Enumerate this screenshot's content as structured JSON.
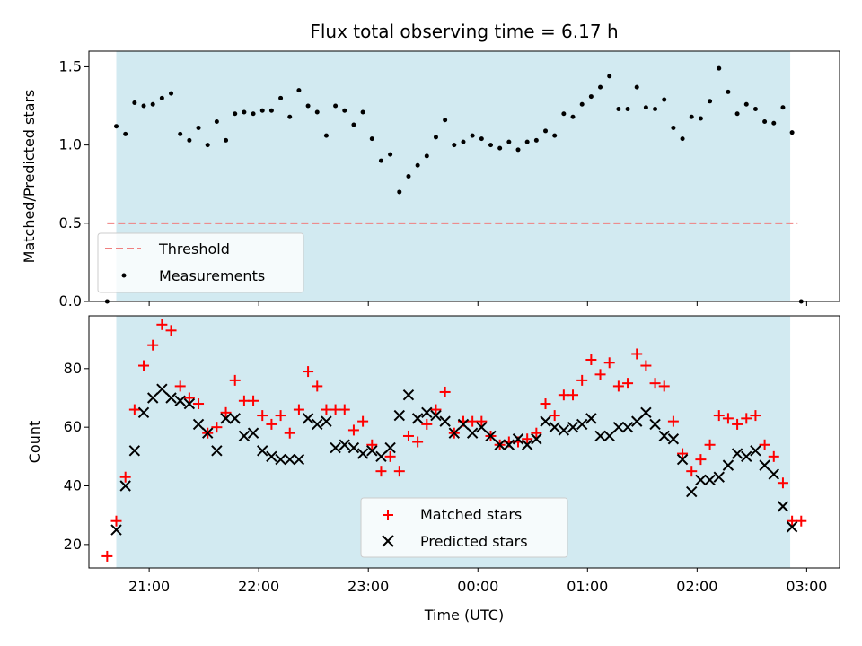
{
  "chart_data": [
    {
      "type": "scatter",
      "title": "Flux total observing time = 6.17 h",
      "ylabel": "Matched/Predicted stars",
      "xlim": [
        "20:27",
        "03:18"
      ],
      "ylim": [
        0.0,
        1.6
      ],
      "yticks": [
        "0.0",
        "0.5",
        "1.0",
        "1.5"
      ],
      "observing_window": [
        "20:42",
        "02:51"
      ],
      "colors": {
        "window": "#add8e6",
        "threshold": "#f08080",
        "measurements": "#000000"
      },
      "legend_position": "lower-left",
      "threshold": {
        "name": "Threshold",
        "value": 0.5,
        "x_range": [
          "20:37",
          "02:55"
        ]
      },
      "series": [
        {
          "name": "Measurements",
          "x": [
            "20:37",
            "20:42",
            "20:47",
            "20:52",
            "20:57",
            "21:02",
            "21:07",
            "21:12",
            "21:17",
            "21:22",
            "21:27",
            "21:32",
            "21:37",
            "21:42",
            "21:47",
            "21:52",
            "21:57",
            "22:02",
            "22:07",
            "22:12",
            "22:17",
            "22:22",
            "22:27",
            "22:32",
            "22:37",
            "22:42",
            "22:47",
            "22:52",
            "22:57",
            "23:02",
            "23:07",
            "23:12",
            "23:17",
            "23:22",
            "23:27",
            "23:32",
            "23:37",
            "23:42",
            "23:47",
            "23:52",
            "23:57",
            "00:02",
            "00:07",
            "00:12",
            "00:17",
            "00:22",
            "00:27",
            "00:32",
            "00:37",
            "00:42",
            "00:47",
            "00:52",
            "00:57",
            "01:02",
            "01:07",
            "01:12",
            "01:17",
            "01:22",
            "01:27",
            "01:32",
            "01:37",
            "01:42",
            "01:47",
            "01:52",
            "01:57",
            "02:02",
            "02:07",
            "02:12",
            "02:17",
            "02:22",
            "02:27",
            "02:32",
            "02:37",
            "02:42",
            "02:47",
            "02:52",
            "02:57"
          ],
          "values": [
            0.0,
            1.12,
            1.07,
            1.27,
            1.25,
            1.26,
            1.3,
            1.33,
            1.07,
            1.03,
            1.11,
            1.0,
            1.15,
            1.03,
            1.2,
            1.21,
            1.2,
            1.22,
            1.22,
            1.3,
            1.18,
            1.35,
            1.25,
            1.21,
            1.06,
            1.25,
            1.22,
            1.13,
            1.21,
            1.04,
            0.9,
            0.94,
            0.7,
            0.8,
            0.87,
            0.93,
            1.05,
            1.16,
            1.0,
            1.02,
            1.06,
            1.04,
            1.0,
            0.98,
            1.02,
            0.97,
            1.02,
            1.03,
            1.09,
            1.06,
            1.2,
            1.18,
            1.26,
            1.31,
            1.37,
            1.44,
            1.23,
            1.23,
            1.37,
            1.24,
            1.23,
            1.29,
            1.11,
            1.04,
            1.18,
            1.17,
            1.28,
            1.49,
            1.34,
            1.2,
            1.26,
            1.23,
            1.15,
            1.14,
            1.24,
            1.08,
            0.0
          ]
        }
      ]
    },
    {
      "type": "scatter",
      "xlabel": "Time (UTC)",
      "ylabel": "Count",
      "xlim": [
        "20:27",
        "03:18"
      ],
      "ylim": [
        12,
        98
      ],
      "xticks": [
        "21:00",
        "22:00",
        "23:00",
        "00:00",
        "01:00",
        "02:00",
        "03:00"
      ],
      "yticks": [
        "20",
        "40",
        "60",
        "80"
      ],
      "observing_window": [
        "20:42",
        "02:51"
      ],
      "colors": {
        "window": "#add8e6",
        "matched": "#ff0000",
        "predicted": "#000000"
      },
      "legend_position": "lower-center",
      "series": [
        {
          "name": "Matched stars",
          "marker": "plus",
          "x": [
            "20:37",
            "20:42",
            "20:47",
            "20:52",
            "20:57",
            "21:02",
            "21:07",
            "21:12",
            "21:17",
            "21:22",
            "21:27",
            "21:32",
            "21:37",
            "21:42",
            "21:47",
            "21:52",
            "21:57",
            "22:02",
            "22:07",
            "22:12",
            "22:17",
            "22:22",
            "22:27",
            "22:32",
            "22:37",
            "22:42",
            "22:47",
            "22:52",
            "22:57",
            "23:02",
            "23:07",
            "23:12",
            "23:17",
            "23:22",
            "23:27",
            "23:32",
            "23:37",
            "23:42",
            "23:47",
            "23:52",
            "23:57",
            "00:02",
            "00:07",
            "00:12",
            "00:17",
            "00:22",
            "00:27",
            "00:32",
            "00:37",
            "00:42",
            "00:47",
            "00:52",
            "00:57",
            "01:02",
            "01:07",
            "01:12",
            "01:17",
            "01:22",
            "01:27",
            "01:32",
            "01:37",
            "01:42",
            "01:47",
            "01:52",
            "01:57",
            "02:02",
            "02:07",
            "02:12",
            "02:17",
            "02:22",
            "02:27",
            "02:32",
            "02:37",
            "02:42",
            "02:47",
            "02:52",
            "02:57"
          ],
          "values": [
            16,
            28,
            43,
            66,
            81,
            88,
            95,
            93,
            74,
            70,
            68,
            58,
            60,
            65,
            76,
            69,
            69,
            64,
            61,
            64,
            58,
            66,
            79,
            74,
            66,
            66,
            66,
            59,
            62,
            54,
            45,
            50,
            45,
            57,
            55,
            61,
            66,
            72,
            58,
            62,
            62,
            62,
            57,
            54,
            55,
            55,
            56,
            58,
            68,
            64,
            71,
            71,
            76,
            83,
            78,
            82,
            74,
            75,
            85,
            81,
            75,
            74,
            62,
            51,
            45,
            49,
            54,
            64,
            63,
            61,
            63,
            64,
            54,
            50,
            41,
            28,
            28
          ]
        },
        {
          "name": "Predicted stars",
          "marker": "x",
          "x": [
            "20:42",
            "20:47",
            "20:52",
            "20:57",
            "21:02",
            "21:07",
            "21:12",
            "21:17",
            "21:22",
            "21:27",
            "21:32",
            "21:37",
            "21:42",
            "21:47",
            "21:52",
            "21:57",
            "22:02",
            "22:07",
            "22:12",
            "22:17",
            "22:22",
            "22:27",
            "22:32",
            "22:37",
            "22:42",
            "22:47",
            "22:52",
            "22:57",
            "23:02",
            "23:07",
            "23:12",
            "23:17",
            "23:22",
            "23:27",
            "23:32",
            "23:37",
            "23:42",
            "23:47",
            "23:52",
            "23:57",
            "00:02",
            "00:07",
            "00:12",
            "00:17",
            "00:22",
            "00:27",
            "00:32",
            "00:37",
            "00:42",
            "00:47",
            "00:52",
            "00:57",
            "01:02",
            "01:07",
            "01:12",
            "01:17",
            "01:22",
            "01:27",
            "01:32",
            "01:37",
            "01:42",
            "01:47",
            "01:52",
            "01:57",
            "02:02",
            "02:07",
            "02:12",
            "02:17",
            "02:22",
            "02:27",
            "02:32",
            "02:37",
            "02:42",
            "02:47",
            "02:52"
          ],
          "values": [
            25,
            40,
            52,
            65,
            70,
            73,
            70,
            69,
            68,
            61,
            58,
            52,
            63,
            63,
            57,
            58,
            52,
            50,
            49,
            49,
            49,
            63,
            61,
            62,
            53,
            54,
            53,
            51,
            52,
            50,
            53,
            64,
            71,
            63,
            65,
            64,
            62,
            58,
            61,
            58,
            60,
            57,
            54,
            54,
            56,
            54,
            56,
            62,
            60,
            59,
            60,
            61,
            63,
            57,
            57,
            60,
            60,
            62,
            65,
            61,
            57,
            56,
            49,
            38,
            42,
            42,
            43,
            47,
            51,
            50,
            52,
            47,
            44,
            33,
            26
          ]
        }
      ]
    }
  ]
}
